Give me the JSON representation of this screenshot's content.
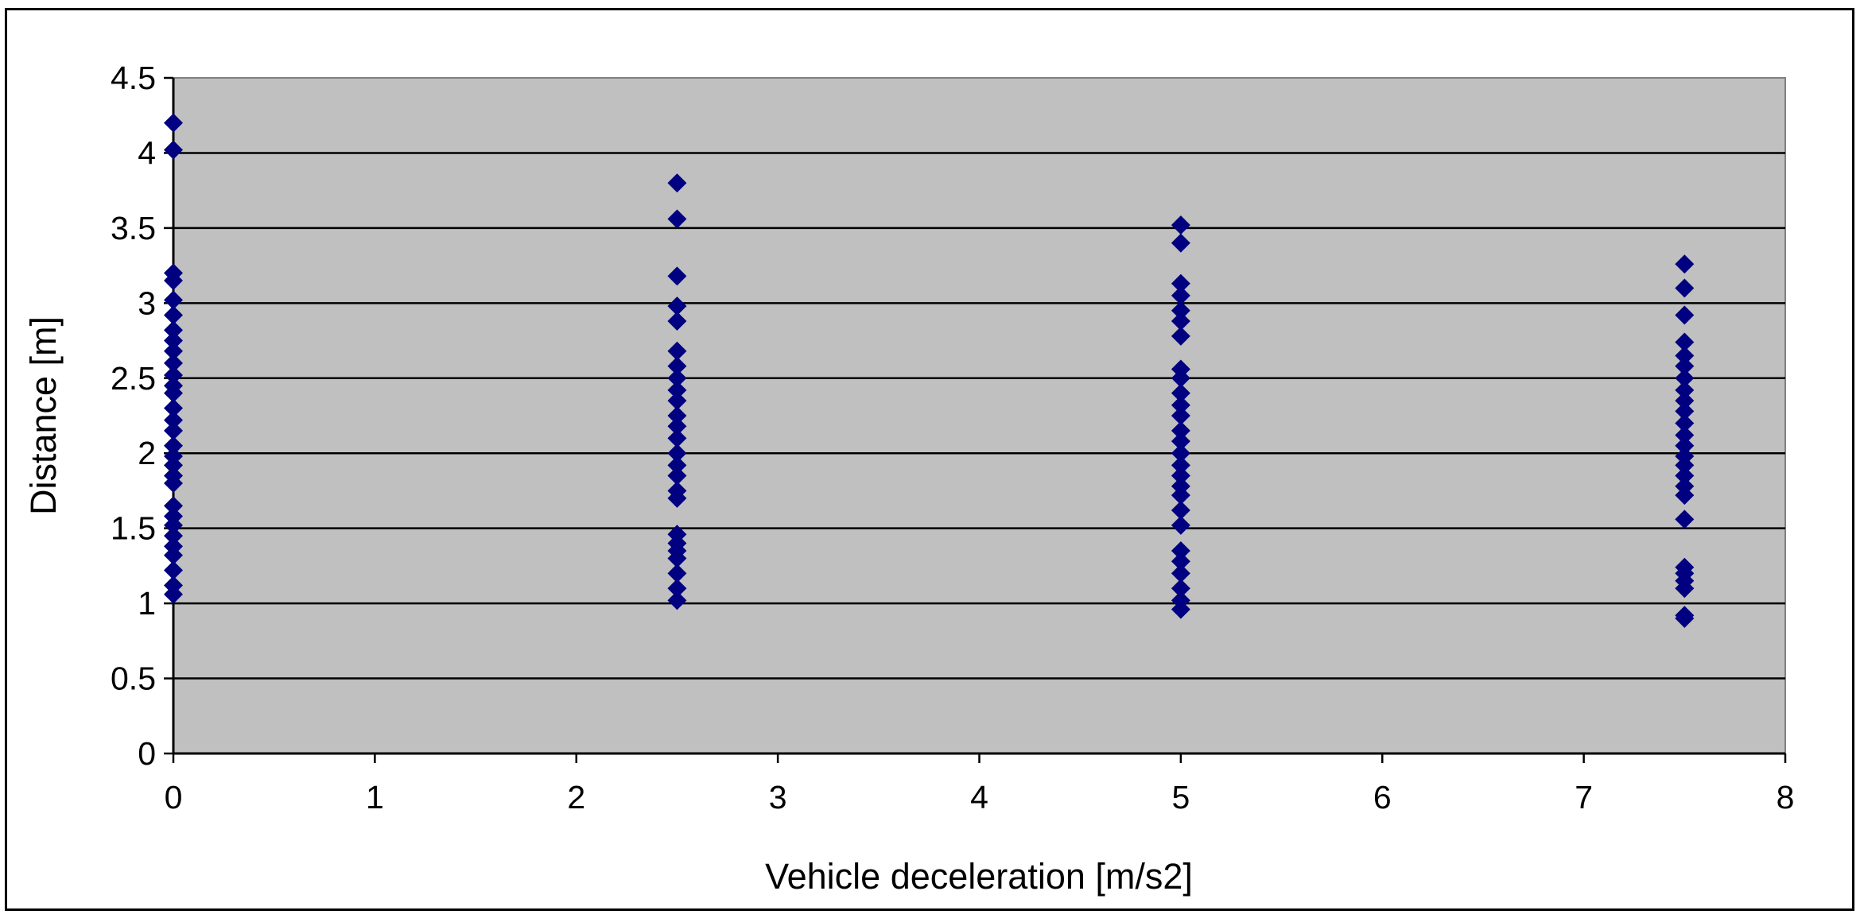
{
  "chart_data": {
    "type": "scatter",
    "title": "",
    "xlabel": "Vehicle deceleration [m/s2]",
    "ylabel": "Distance [m]",
    "xlim": [
      0,
      8
    ],
    "ylim": [
      0,
      4.5
    ],
    "x_ticks": [
      "0",
      "1",
      "2",
      "3",
      "4",
      "5",
      "6",
      "7",
      "8"
    ],
    "y_ticks": [
      "0",
      "0.5",
      "1",
      "1.5",
      "2",
      "2.5",
      "3",
      "3.5",
      "4",
      "4.5"
    ],
    "grid": "horizontal",
    "legend": "none",
    "plot_background": "#c0c0c0",
    "marker_color": "#000080",
    "marker": "diamond",
    "series": [
      {
        "points": [
          [
            0,
            4.2
          ],
          [
            0,
            4.02
          ],
          [
            0,
            3.2
          ],
          [
            0,
            3.15
          ],
          [
            0,
            3.02
          ],
          [
            0,
            2.92
          ],
          [
            0,
            2.82
          ],
          [
            0,
            2.75
          ],
          [
            0,
            2.68
          ],
          [
            0,
            2.6
          ],
          [
            0,
            2.52
          ],
          [
            0,
            2.45
          ],
          [
            0,
            2.4
          ],
          [
            0,
            2.3
          ],
          [
            0,
            2.22
          ],
          [
            0,
            2.15
          ],
          [
            0,
            2.05
          ],
          [
            0,
            1.98
          ],
          [
            0,
            1.92
          ],
          [
            0,
            1.85
          ],
          [
            0,
            1.8
          ],
          [
            0,
            1.65
          ],
          [
            0,
            1.58
          ],
          [
            0,
            1.52
          ],
          [
            0,
            1.45
          ],
          [
            0,
            1.38
          ],
          [
            0,
            1.32
          ],
          [
            0,
            1.22
          ],
          [
            0,
            1.12
          ],
          [
            0,
            1.06
          ],
          [
            2.5,
            3.8
          ],
          [
            2.5,
            3.56
          ],
          [
            2.5,
            3.18
          ],
          [
            2.5,
            2.98
          ],
          [
            2.5,
            2.88
          ],
          [
            2.5,
            2.68
          ],
          [
            2.5,
            2.58
          ],
          [
            2.5,
            2.5
          ],
          [
            2.5,
            2.42
          ],
          [
            2.5,
            2.35
          ],
          [
            2.5,
            2.25
          ],
          [
            2.5,
            2.18
          ],
          [
            2.5,
            2.1
          ],
          [
            2.5,
            2.0
          ],
          [
            2.5,
            1.92
          ],
          [
            2.5,
            1.85
          ],
          [
            2.5,
            1.75
          ],
          [
            2.5,
            1.7
          ],
          [
            2.5,
            1.46
          ],
          [
            2.5,
            1.4
          ],
          [
            2.5,
            1.35
          ],
          [
            2.5,
            1.3
          ],
          [
            2.5,
            1.2
          ],
          [
            2.5,
            1.1
          ],
          [
            2.5,
            1.02
          ],
          [
            5,
            3.52
          ],
          [
            5,
            3.4
          ],
          [
            5,
            3.13
          ],
          [
            5,
            3.05
          ],
          [
            5,
            2.95
          ],
          [
            5,
            2.88
          ],
          [
            5,
            2.78
          ],
          [
            5,
            2.56
          ],
          [
            5,
            2.5
          ],
          [
            5,
            2.4
          ],
          [
            5,
            2.32
          ],
          [
            5,
            2.25
          ],
          [
            5,
            2.15
          ],
          [
            5,
            2.08
          ],
          [
            5,
            2.0
          ],
          [
            5,
            1.92
          ],
          [
            5,
            1.85
          ],
          [
            5,
            1.78
          ],
          [
            5,
            1.72
          ],
          [
            5,
            1.62
          ],
          [
            5,
            1.52
          ],
          [
            5,
            1.35
          ],
          [
            5,
            1.28
          ],
          [
            5,
            1.2
          ],
          [
            5,
            1.1
          ],
          [
            5,
            1.02
          ],
          [
            5,
            0.96
          ],
          [
            7.5,
            3.26
          ],
          [
            7.5,
            3.1
          ],
          [
            7.5,
            2.92
          ],
          [
            7.5,
            2.74
          ],
          [
            7.5,
            2.65
          ],
          [
            7.5,
            2.58
          ],
          [
            7.5,
            2.5
          ],
          [
            7.5,
            2.42
          ],
          [
            7.5,
            2.35
          ],
          [
            7.5,
            2.28
          ],
          [
            7.5,
            2.2
          ],
          [
            7.5,
            2.12
          ],
          [
            7.5,
            2.05
          ],
          [
            7.5,
            1.98
          ],
          [
            7.5,
            1.92
          ],
          [
            7.5,
            1.85
          ],
          [
            7.5,
            1.78
          ],
          [
            7.5,
            1.72
          ],
          [
            7.5,
            1.56
          ],
          [
            7.5,
            1.24
          ],
          [
            7.5,
            1.2
          ],
          [
            7.5,
            1.15
          ],
          [
            7.5,
            1.1
          ],
          [
            7.5,
            0.92
          ],
          [
            7.5,
            0.9
          ]
        ]
      }
    ]
  }
}
